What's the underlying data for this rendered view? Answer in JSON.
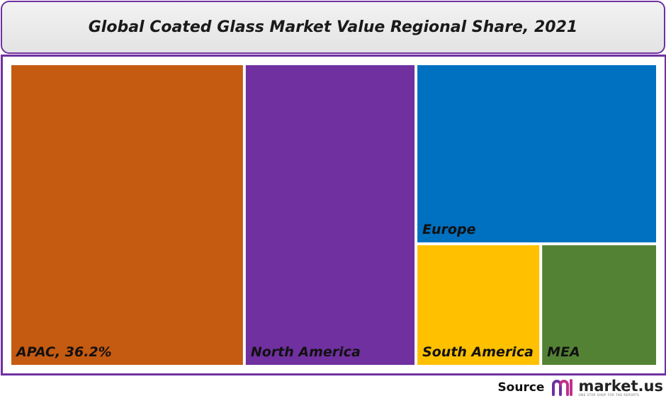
{
  "title": "Global Coated Glass Market Value Regional Share, 2021",
  "source_label": "Source",
  "brand": {
    "name": "market.us",
    "tagline": "ONE STOP SHOP FOR THE REPORTS",
    "icon": "market-us-logo-icon"
  },
  "chart_data": {
    "type": "treemap",
    "title": "Global Coated Glass Market Value Regional Share, 2021",
    "items": [
      {
        "label": "APAC, 36.2%",
        "region": "APAC",
        "share_pct": 36.2,
        "color": "#c55a11"
      },
      {
        "label": "North America",
        "region": "North America",
        "share_pct": 26.5,
        "color": "#7030a0"
      },
      {
        "label": "Europe",
        "region": "Europe",
        "share_pct": 22.2,
        "color": "#0070c0"
      },
      {
        "label": "South America",
        "region": "South America",
        "share_pct": 7.8,
        "color": "#ffc000"
      },
      {
        "label": "MEA",
        "region": "MEA",
        "share_pct": 7.3,
        "color": "#548235"
      }
    ]
  }
}
